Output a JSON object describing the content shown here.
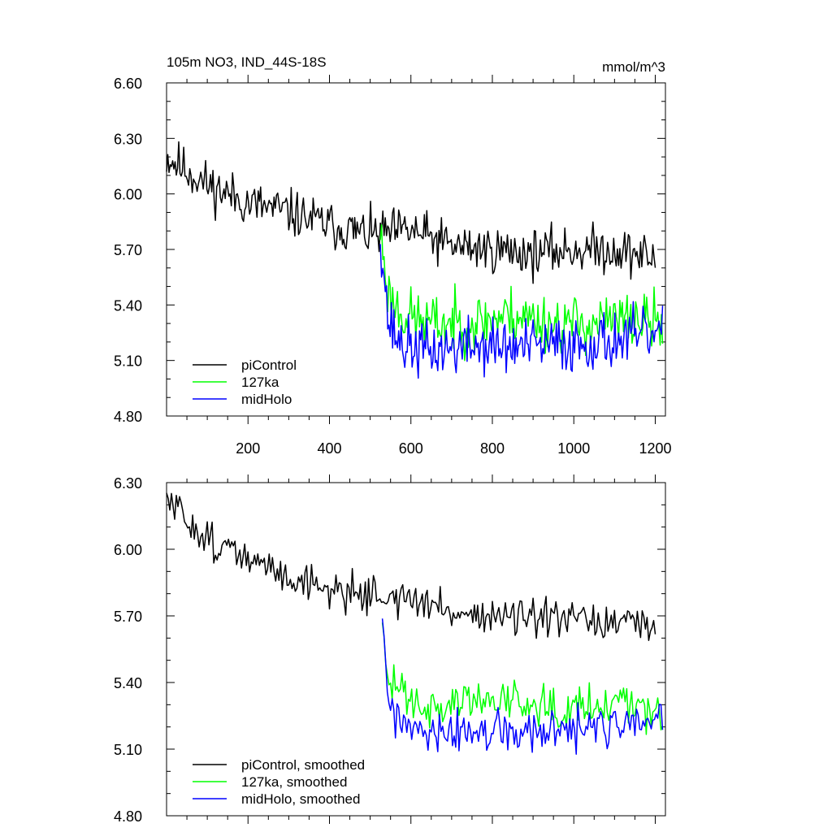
{
  "colors": {
    "piControl": "#000000",
    "127ka": "#00ff00",
    "midHolo": "#0000ff"
  },
  "chart_data": [
    {
      "type": "line",
      "title": "105m NO3, IND_44S-18S",
      "units": "mmol/m^3",
      "xlim": [
        0,
        1225
      ],
      "ylim": [
        4.8,
        6.6
      ],
      "x_ticks": [
        200,
        400,
        600,
        800,
        1000,
        1200
      ],
      "x_tick_labels": [
        "200",
        "400",
        "600",
        "800",
        "1000",
        "1200"
      ],
      "y_ticks": [
        4.8,
        5.1,
        5.4,
        5.7,
        6.0,
        6.3,
        6.6
      ],
      "y_tick_labels": [
        "4.80",
        "5.10",
        "5.40",
        "5.70",
        "6.00",
        "6.30",
        "6.60"
      ],
      "legend": [
        "piControl",
        "127ka",
        "midHolo"
      ],
      "series": [
        {
          "name": "piControl",
          "color_key": "piControl",
          "x_start": 0,
          "x_end": 1200,
          "step": 3,
          "anchors": [
            [
              0,
              6.2
            ],
            [
              100,
              6.05
            ],
            [
              200,
              5.95
            ],
            [
              300,
              5.9
            ],
            [
              400,
              5.83
            ],
            [
              500,
              5.78
            ],
            [
              600,
              5.8
            ],
            [
              700,
              5.72
            ],
            [
              800,
              5.7
            ],
            [
              900,
              5.68
            ],
            [
              1000,
              5.7
            ],
            [
              1100,
              5.7
            ],
            [
              1200,
              5.65
            ]
          ],
          "amp": 0.09,
          "seed": 11
        },
        {
          "name": "127ka",
          "color_key": "127ka",
          "x_start": 525,
          "x_end": 1220,
          "step": 3,
          "anchors": [
            [
              525,
              5.8
            ],
            [
              545,
              5.45
            ],
            [
              580,
              5.35
            ],
            [
              650,
              5.3
            ],
            [
              750,
              5.3
            ],
            [
              850,
              5.35
            ],
            [
              950,
              5.3
            ],
            [
              1050,
              5.3
            ],
            [
              1150,
              5.32
            ],
            [
              1220,
              5.3
            ]
          ],
          "amp": 0.11,
          "seed": 23
        },
        {
          "name": "midHolo",
          "color_key": "midHolo",
          "x_start": 525,
          "x_end": 1220,
          "step": 3,
          "anchors": [
            [
              525,
              5.8
            ],
            [
              545,
              5.3
            ],
            [
              580,
              5.18
            ],
            [
              650,
              5.15
            ],
            [
              750,
              5.18
            ],
            [
              850,
              5.17
            ],
            [
              950,
              5.18
            ],
            [
              1050,
              5.2
            ],
            [
              1150,
              5.22
            ],
            [
              1220,
              5.25
            ]
          ],
          "amp": 0.11,
          "seed": 37
        }
      ]
    },
    {
      "type": "line",
      "title": "",
      "xlim": [
        0,
        1225
      ],
      "ylim": [
        4.8,
        6.3
      ],
      "x_ticks": [
        200,
        400,
        600,
        800,
        1000,
        1200
      ],
      "x_tick_labels": [],
      "y_ticks": [
        4.8,
        5.1,
        5.4,
        5.7,
        6.0,
        6.3
      ],
      "y_tick_labels": [
        "4.80",
        "5.10",
        "5.40",
        "5.70",
        "6.00",
        "6.30"
      ],
      "legend": [
        "piControl, smoothed",
        "127ka, smoothed",
        "midHolo, smoothed"
      ],
      "series": [
        {
          "name": "piControl, smoothed",
          "color_key": "piControl",
          "x_start": 0,
          "x_end": 1200,
          "step": 4,
          "anchors": [
            [
              0,
              6.22
            ],
            [
              100,
              6.05
            ],
            [
              200,
              5.95
            ],
            [
              300,
              5.88
            ],
            [
              400,
              5.82
            ],
            [
              500,
              5.8
            ],
            [
              600,
              5.77
            ],
            [
              700,
              5.72
            ],
            [
              800,
              5.7
            ],
            [
              900,
              5.68
            ],
            [
              1000,
              5.68
            ],
            [
              1100,
              5.66
            ],
            [
              1200,
              5.65
            ]
          ],
          "amp": 0.06,
          "seed": 51
        },
        {
          "name": "127ka, smoothed",
          "color_key": "127ka",
          "x_start": 530,
          "x_end": 1220,
          "step": 4,
          "anchors": [
            [
              530,
              5.6
            ],
            [
              545,
              5.4
            ],
            [
              580,
              5.38
            ],
            [
              650,
              5.28
            ],
            [
              750,
              5.32
            ],
            [
              850,
              5.33
            ],
            [
              950,
              5.3
            ],
            [
              1050,
              5.3
            ],
            [
              1150,
              5.33
            ],
            [
              1220,
              5.25
            ]
          ],
          "amp": 0.07,
          "seed": 63
        },
        {
          "name": "midHolo, smoothed",
          "color_key": "midHolo",
          "x_start": 530,
          "x_end": 1220,
          "step": 4,
          "anchors": [
            [
              530,
              5.73
            ],
            [
              545,
              5.3
            ],
            [
              580,
              5.2
            ],
            [
              650,
              5.15
            ],
            [
              750,
              5.18
            ],
            [
              850,
              5.17
            ],
            [
              950,
              5.17
            ],
            [
              1050,
              5.2
            ],
            [
              1150,
              5.2
            ],
            [
              1220,
              5.24
            ]
          ],
          "amp": 0.07,
          "seed": 77
        }
      ]
    }
  ]
}
